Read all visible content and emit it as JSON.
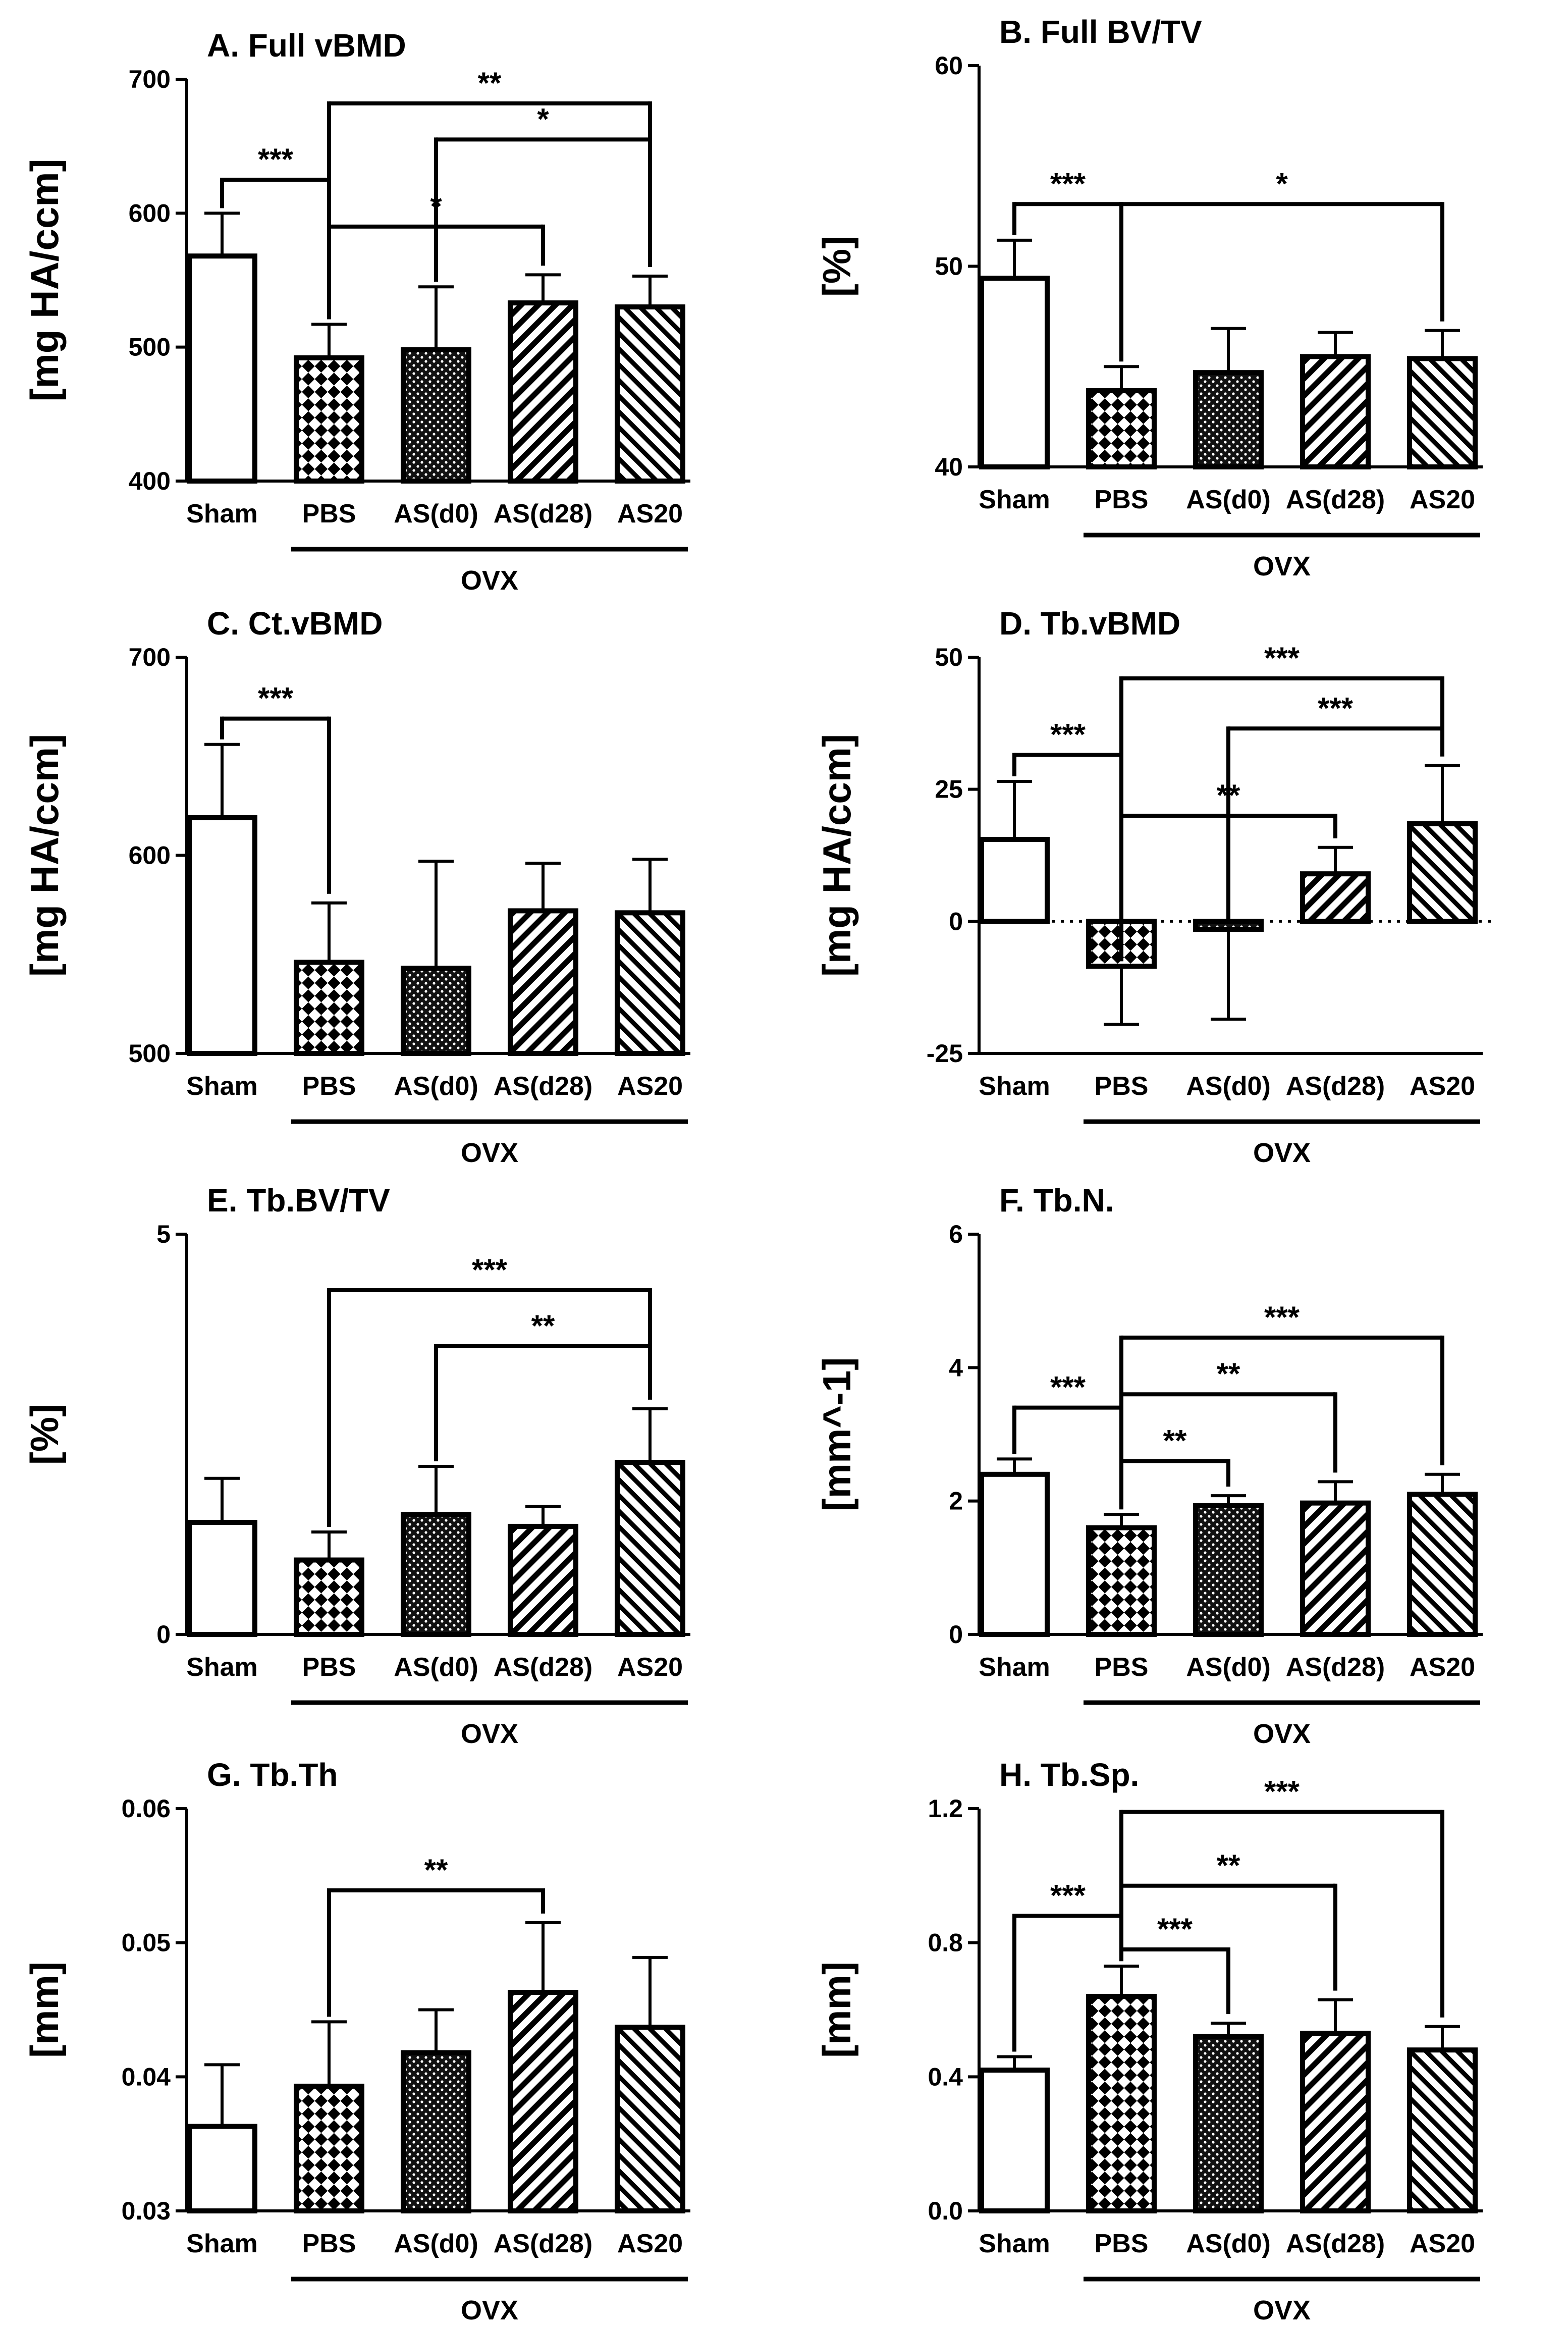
{
  "chart_data": [
    {
      "type": "bar",
      "title": "A. Full vBMD",
      "ylabel": "[mg HA/ccm]",
      "categories": [
        "Sham",
        "PBS",
        "AS(d0)",
        "AS(d28)",
        "AS20"
      ],
      "values": [
        568,
        492,
        498,
        533,
        530
      ],
      "errors": [
        32,
        25,
        47,
        21,
        23
      ],
      "ylim": [
        400,
        700
      ],
      "yticks": [
        400,
        500,
        600,
        700
      ],
      "zero_line": false,
      "group": {
        "label": "OVX",
        "from": 1,
        "to": 4
      },
      "sig": [
        {
          "bar": 0,
          "to": [
            1
          ],
          "label": "***",
          "level": 625
        },
        {
          "bar": 1,
          "to": [
            4
          ],
          "label": "**",
          "level": 682
        },
        {
          "bar": 2,
          "to": [
            4
          ],
          "label": "*",
          "level": 655
        },
        {
          "bar": 1,
          "to": [
            3
          ],
          "label": "*",
          "level": 590
        }
      ]
    },
    {
      "type": "bar",
      "title": "B. Full BV/TV",
      "ylabel": "[%]",
      "categories": [
        "Sham",
        "PBS",
        "AS(d0)",
        "AS(d28)",
        "AS20"
      ],
      "values": [
        49.4,
        43.8,
        44.7,
        45.5,
        45.4
      ],
      "errors": [
        1.9,
        1.2,
        2.2,
        1.2,
        1.4
      ],
      "ylim": [
        40,
        60
      ],
      "yticks": [
        40,
        50,
        60
      ],
      "zero_line": false,
      "group": {
        "label": "OVX",
        "from": 1,
        "to": 4
      },
      "sig": [
        {
          "bar": 0,
          "to": [
            1
          ],
          "label": "***",
          "level": 53.1
        },
        {
          "bar": 1,
          "to": [
            4
          ],
          "label": "*",
          "level": 53.1
        }
      ]
    },
    {
      "type": "bar",
      "title": "C. Ct.vBMD",
      "ylabel": "[mg HA/ccm]",
      "categories": [
        "Sham",
        "PBS",
        "AS(d0)",
        "AS(d28)",
        "AS20"
      ],
      "values": [
        619,
        546,
        543,
        572,
        571
      ],
      "errors": [
        37,
        30,
        54,
        24,
        27
      ],
      "ylim": [
        500,
        700
      ],
      "yticks": [
        500,
        600,
        700
      ],
      "zero_line": false,
      "group": {
        "label": "OVX",
        "from": 1,
        "to": 4
      },
      "sig": [
        {
          "bar": 0,
          "to": [
            1
          ],
          "label": "***",
          "level": 669
        }
      ]
    },
    {
      "type": "bar",
      "title": "D. Tb.vBMD",
      "ylabel": "[mg HA/ccm]",
      "categories": [
        "Sham",
        "PBS",
        "AS(d0)",
        "AS(d28)",
        "AS20"
      ],
      "values": [
        15.5,
        -8.5,
        -1.5,
        9.0,
        18.5
      ],
      "errors": [
        11,
        11,
        17,
        5,
        11
      ],
      "ylim": [
        -25,
        50
      ],
      "yticks": [
        -25,
        0,
        25,
        50
      ],
      "zero_line": true,
      "group": {
        "label": "OVX",
        "from": 1,
        "to": 4
      },
      "sig": [
        {
          "bar": 0,
          "to": [
            1
          ],
          "label": "***",
          "level": 31.5
        },
        {
          "bar": 1,
          "to": [
            4
          ],
          "label": "***",
          "level": 46
        },
        {
          "bar": 2,
          "to": [
            4
          ],
          "label": "***",
          "level": 36.5
        },
        {
          "bar": 1,
          "to": [
            3
          ],
          "label": "**",
          "level": 20
        }
      ]
    },
    {
      "type": "bar",
      "title": "E. Tb.BV/TV",
      "ylabel": "[%]",
      "categories": [
        "Sham",
        "PBS",
        "AS(d0)",
        "AS(d28)",
        "AS20"
      ],
      "values": [
        1.4,
        0.93,
        1.5,
        1.35,
        2.15
      ],
      "errors": [
        0.55,
        0.35,
        0.6,
        0.25,
        0.67
      ],
      "ylim": [
        0,
        5
      ],
      "yticks": [
        0,
        5
      ],
      "zero_line": false,
      "group": {
        "label": "OVX",
        "from": 1,
        "to": 4
      },
      "sig": [
        {
          "bar": 1,
          "to": [
            4
          ],
          "label": "***",
          "level": 4.3
        },
        {
          "bar": 2,
          "to": [
            4
          ],
          "label": "**",
          "level": 3.6
        }
      ]
    },
    {
      "type": "bar",
      "title": "F. Tb.N.",
      "ylabel": "[mm^-1]",
      "categories": [
        "Sham",
        "PBS",
        "AS(d0)",
        "AS(d28)",
        "AS20"
      ],
      "values": [
        2.4,
        1.6,
        1.93,
        1.97,
        2.1
      ],
      "errors": [
        0.23,
        0.2,
        0.15,
        0.32,
        0.3
      ],
      "ylim": [
        0,
        6
      ],
      "yticks": [
        0,
        2,
        4,
        6
      ],
      "zero_line": false,
      "group": {
        "label": "OVX",
        "from": 1,
        "to": 4
      },
      "sig": [
        {
          "bar": 0,
          "to": [
            1
          ],
          "label": "***",
          "level": 3.4
        },
        {
          "bar": 1,
          "to": [
            4
          ],
          "label": "***",
          "level": 4.45
        },
        {
          "bar": 1,
          "to": [
            3
          ],
          "label": "**",
          "level": 3.6
        },
        {
          "bar": 1,
          "to": [
            2
          ],
          "label": "**",
          "level": 2.6
        }
      ]
    },
    {
      "type": "bar",
      "title": "G. Tb.Th",
      "ylabel": "[mm]",
      "categories": [
        "Sham",
        "PBS",
        "AS(d0)",
        "AS(d28)",
        "AS20"
      ],
      "values": [
        0.0363,
        0.0393,
        0.0418,
        0.0463,
        0.0437
      ],
      "errors": [
        0.0046,
        0.0048,
        0.0032,
        0.0052,
        0.0052
      ],
      "ylim": [
        0.03,
        0.06
      ],
      "yticks": [
        0.03,
        0.04,
        0.05,
        0.06
      ],
      "zero_line": false,
      "group": {
        "label": "OVX",
        "from": 1,
        "to": 4
      },
      "sig": [
        {
          "bar": 1,
          "to": [
            3
          ],
          "label": "**",
          "level": 0.0539
        }
      ]
    },
    {
      "type": "bar",
      "title": "H. Tb.Sp.",
      "ylabel": "[mm]",
      "categories": [
        "Sham",
        "PBS",
        "AS(d0)",
        "AS(d28)",
        "AS20"
      ],
      "values": [
        0.42,
        0.64,
        0.52,
        0.53,
        0.48
      ],
      "errors": [
        0.04,
        0.09,
        0.04,
        0.1,
        0.07
      ],
      "ylim": [
        0,
        1.2
      ],
      "yticks": [
        0.0,
        0.4,
        0.8,
        1.2
      ],
      "tick_decimals": 1,
      "zero_line": false,
      "group": {
        "label": "OVX",
        "from": 1,
        "to": 4
      },
      "sig": [
        {
          "bar": 0,
          "to": [
            1
          ],
          "label": "***",
          "level": 0.88
        },
        {
          "bar": 1,
          "to": [
            4
          ],
          "label": "***",
          "level": 1.19
        },
        {
          "bar": 1,
          "to": [
            3
          ],
          "label": "**",
          "level": 0.97
        },
        {
          "bar": 1,
          "to": [
            2
          ],
          "label": "***",
          "level": 0.78
        }
      ]
    }
  ]
}
